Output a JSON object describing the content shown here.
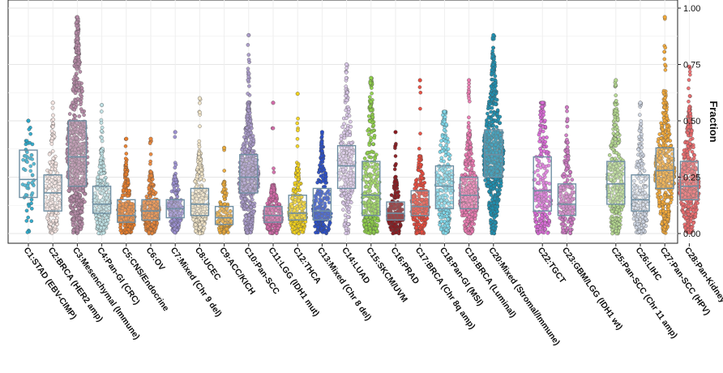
{
  "chart_data": {
    "type": "scatter",
    "subtype": "beeswarm-boxplot",
    "ylabel": "Fraction",
    "y_axis_side": "right",
    "ylim": [
      -0.02,
      1.0
    ],
    "y_ticks": [
      0.0,
      0.25,
      0.5,
      0.75,
      1.0
    ],
    "y_tick_labels": [
      "0.00",
      "0.25",
      "0.50",
      "0.75",
      "1.00"
    ],
    "grid": true,
    "groups": [
      {
        "label": "C1:STAD (EBV-CIMP)",
        "color": "#2aa6c8",
        "n": 60,
        "q1": 0.16,
        "median": 0.24,
        "q3": 0.37,
        "max": 0.5,
        "maxWidth": 0.55
      },
      {
        "label": "C2:BRCA (HER2 amp)",
        "color": "#f3e4e0",
        "n": 200,
        "q1": 0.1,
        "median": 0.18,
        "q3": 0.26,
        "max": 0.58,
        "maxWidth": 0.7
      },
      {
        "label": "C3:Mesenchymal (Immune)",
        "color": "#b58aa6",
        "n": 700,
        "q1": 0.21,
        "median": 0.34,
        "q3": 0.5,
        "max": 0.96,
        "maxWidth": 0.95
      },
      {
        "label": "C4:Pan-GI (CRC)",
        "color": "#bfe0e4",
        "n": 260,
        "q1": 0.09,
        "median": 0.13,
        "q3": 0.21,
        "max": 0.57,
        "maxWidth": 0.75
      },
      {
        "label": "C5:CNS/Endocrine",
        "color": "#e87d2a",
        "n": 260,
        "q1": 0.05,
        "median": 0.08,
        "q3": 0.15,
        "max": 0.42,
        "maxWidth": 0.8
      },
      {
        "label": "C6:OV",
        "color": "#e8863a",
        "n": 260,
        "q1": 0.06,
        "median": 0.1,
        "q3": 0.15,
        "max": 0.42,
        "maxWidth": 0.8
      },
      {
        "label": "C7:Mixed (Chr 9 del)",
        "color": "#9b8fd0",
        "n": 180,
        "q1": 0.07,
        "median": 0.11,
        "q3": 0.15,
        "max": 0.45,
        "maxWidth": 0.7
      },
      {
        "label": "C8:UCEC",
        "color": "#efe3c6",
        "n": 260,
        "q1": 0.08,
        "median": 0.13,
        "q3": 0.2,
        "max": 0.6,
        "maxWidth": 0.75
      },
      {
        "label": "C9:ACC/KICH",
        "color": "#e9a93a",
        "n": 130,
        "q1": 0.04,
        "median": 0.07,
        "q3": 0.12,
        "max": 0.38,
        "maxWidth": 0.7
      },
      {
        "label": "C10:Pan-SCC",
        "color": "#a99ac8",
        "n": 520,
        "q1": 0.18,
        "median": 0.25,
        "q3": 0.35,
        "max": 0.88,
        "maxWidth": 0.9
      },
      {
        "label": "C11:LGG (IDH1 mut)",
        "color": "#d26aa8",
        "n": 260,
        "q1": 0.05,
        "median": 0.08,
        "q3": 0.12,
        "max": 0.58,
        "maxWidth": 0.85
      },
      {
        "label": "C12:THCA",
        "color": "#f2d21c",
        "n": 240,
        "q1": 0.06,
        "median": 0.09,
        "q3": 0.17,
        "max": 0.62,
        "maxWidth": 0.8
      },
      {
        "label": "C13:Mixed (Chr 8 del)",
        "color": "#2b4fc8",
        "n": 260,
        "q1": 0.06,
        "median": 0.1,
        "q3": 0.2,
        "max": 0.45,
        "maxWidth": 0.85
      },
      {
        "label": "C14:LUAD",
        "color": "#d8c6e6",
        "n": 260,
        "q1": 0.2,
        "median": 0.3,
        "q3": 0.39,
        "max": 0.75,
        "maxWidth": 0.75
      },
      {
        "label": "C15:SKCM/UVM",
        "color": "#8fd04a",
        "n": 320,
        "q1": 0.08,
        "median": 0.17,
        "q3": 0.32,
        "max": 0.69,
        "maxWidth": 0.8
      },
      {
        "label": "C16:PRAD",
        "color": "#8a1a20",
        "n": 200,
        "q1": 0.06,
        "median": 0.09,
        "q3": 0.14,
        "max": 0.45,
        "maxWidth": 0.75
      },
      {
        "label": "C17:BRCA (Chr 8q amp)",
        "color": "#e64a3c",
        "n": 240,
        "q1": 0.08,
        "median": 0.12,
        "q3": 0.19,
        "max": 0.68,
        "maxWidth": 0.8
      },
      {
        "label": "C18:Pan-GI (MSI)",
        "color": "#7fd8ea",
        "n": 260,
        "q1": 0.11,
        "median": 0.21,
        "q3": 0.3,
        "max": 0.54,
        "maxWidth": 0.8
      },
      {
        "label": "C19:BRCA (Luminal)",
        "color": "#e97ab0",
        "n": 420,
        "q1": 0.11,
        "median": 0.17,
        "q3": 0.25,
        "max": 0.68,
        "maxWidth": 0.85
      },
      {
        "label": "C20:Mixed (Stromal/Immune)",
        "color": "#1f8fb0",
        "n": 700,
        "q1": 0.25,
        "median": 0.35,
        "q3": 0.46,
        "max": 0.88,
        "maxWidth": 0.95
      },
      {
        "label": "C22:TGCT",
        "color": "#d96ad6",
        "n": 240,
        "q1": 0.1,
        "median": 0.19,
        "q3": 0.34,
        "max": 0.58,
        "maxWidth": 0.8
      },
      {
        "label": "C23:GBM/LGG (IDH1 wt)",
        "color": "#cf7ac4",
        "n": 200,
        "q1": 0.08,
        "median": 0.13,
        "q3": 0.22,
        "max": 0.56,
        "maxWidth": 0.75
      },
      {
        "label": "C25:Pan-SCC (Chr 11 amp)",
        "color": "#b3d78e",
        "n": 280,
        "q1": 0.13,
        "median": 0.22,
        "q3": 0.32,
        "max": 0.68,
        "maxWidth": 0.8
      },
      {
        "label": "C26:LIHC",
        "color": "#cfd6e3",
        "n": 220,
        "q1": 0.1,
        "median": 0.15,
        "q3": 0.26,
        "max": 0.58,
        "maxWidth": 0.75
      },
      {
        "label": "C27:Pan-SCC (HPV)",
        "color": "#f1a838",
        "n": 420,
        "q1": 0.2,
        "median": 0.28,
        "q3": 0.38,
        "max": 0.96,
        "maxWidth": 0.9
      },
      {
        "label": "C28:Pan-Kidney",
        "color": "#ea6b6e",
        "n": 420,
        "q1": 0.15,
        "median": 0.21,
        "q3": 0.32,
        "max": 0.74,
        "maxWidth": 0.9
      }
    ]
  }
}
